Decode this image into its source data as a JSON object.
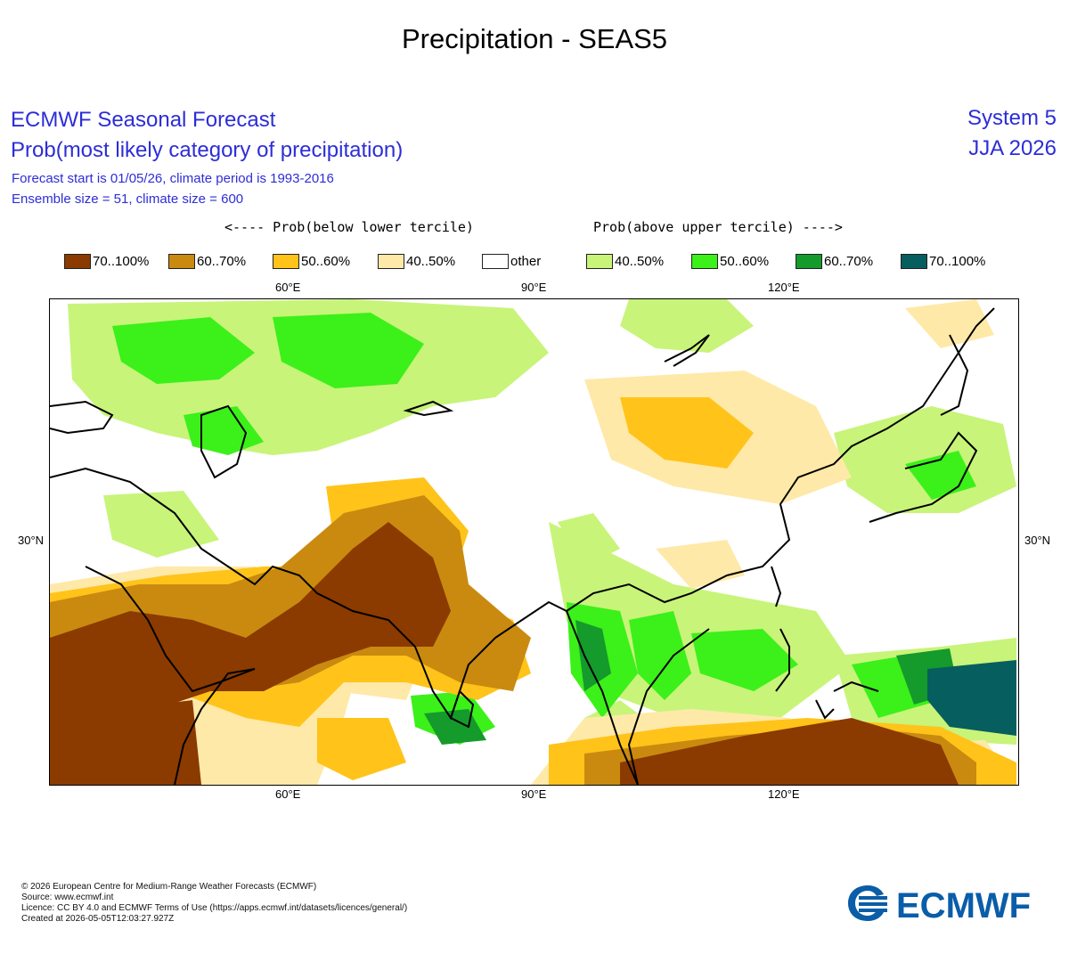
{
  "page_title": "Precipitation - SEAS5",
  "header": {
    "line1": "ECMWF Seasonal Forecast",
    "line2": "Prob(most likely category of precipitation)",
    "line3": "Forecast start is 01/05/26, climate period is 1993-2016",
    "line4": "Ensemble size = 51, climate size = 600",
    "system": "System 5",
    "season": "JJA 2026"
  },
  "legend": {
    "below_heading": "<---- Prob(below lower tercile)",
    "above_heading": "Prob(above upper tercile) ---->",
    "items": [
      {
        "label": "70..100%",
        "color": "#8b3a00"
      },
      {
        "label": "60..70%",
        "color": "#c98a0f"
      },
      {
        "label": "50..60%",
        "color": "#ffc31a"
      },
      {
        "label": "40..50%",
        "color": "#ffe9a8"
      },
      {
        "label": "other",
        "color": "#ffffff"
      },
      {
        "label": "40..50%",
        "color": "#c8f47a"
      },
      {
        "label": "50..60%",
        "color": "#3cf01a"
      },
      {
        "label": "60..70%",
        "color": "#159a2c"
      },
      {
        "label": "70..100%",
        "color": "#075e5e"
      }
    ]
  },
  "axes": {
    "lon_top": [
      "60°E",
      "90°E",
      "120°E"
    ],
    "lon_bottom": [
      "60°E",
      "90°E",
      "120°E"
    ],
    "lat_left": "30°N",
    "lat_right": "30°N"
  },
  "footer": {
    "line1": "© 2026 European Centre for Medium-Range Weather Forecasts (ECMWF)",
    "line2": "Source: www.ecmwf.int",
    "line3": "Licence: CC BY 4.0 and ECMWF Terms of Use (https://apps.ecmwf.int/datasets/licences/general/)",
    "line4": "Created at 2026-05-05T12:03:27.927Z"
  },
  "logo_text": "ECMWF",
  "logo_color": "#0a5da8"
}
